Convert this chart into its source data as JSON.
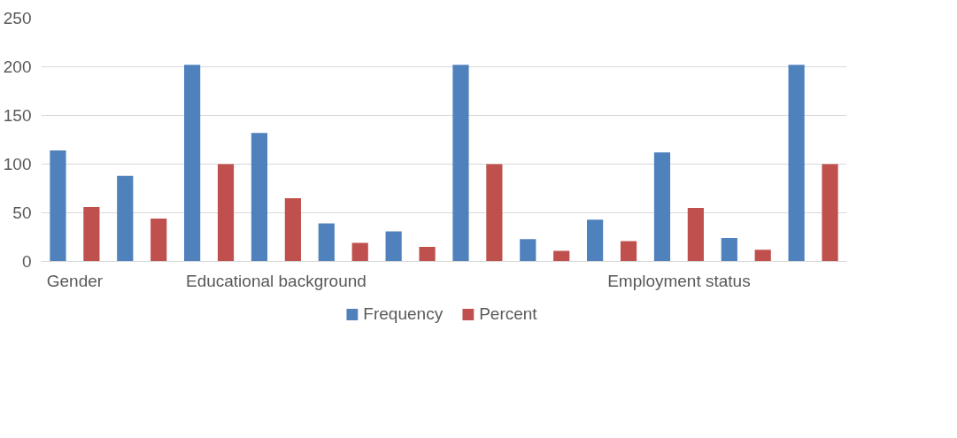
{
  "chart_data": {
    "type": "bar",
    "categories": [
      "Gender",
      null,
      null,
      "Educational background",
      null,
      null,
      null,
      null,
      null,
      "Employment status",
      null,
      null
    ],
    "series": [
      {
        "name": "Frequency",
        "color": "#4f81bd",
        "values": [
          114,
          88,
          202,
          132,
          39,
          31,
          202,
          23,
          43,
          112,
          24,
          202
        ]
      },
      {
        "name": "Percent",
        "color": "#c0504d",
        "values": [
          56,
          44,
          100,
          65,
          19,
          15,
          100,
          11,
          21,
          55,
          12,
          100
        ]
      }
    ],
    "ylim": [
      0,
      250
    ],
    "yticks": [
      0,
      50,
      100,
      150,
      200,
      250
    ],
    "grid": "y",
    "legend": "bottom"
  }
}
